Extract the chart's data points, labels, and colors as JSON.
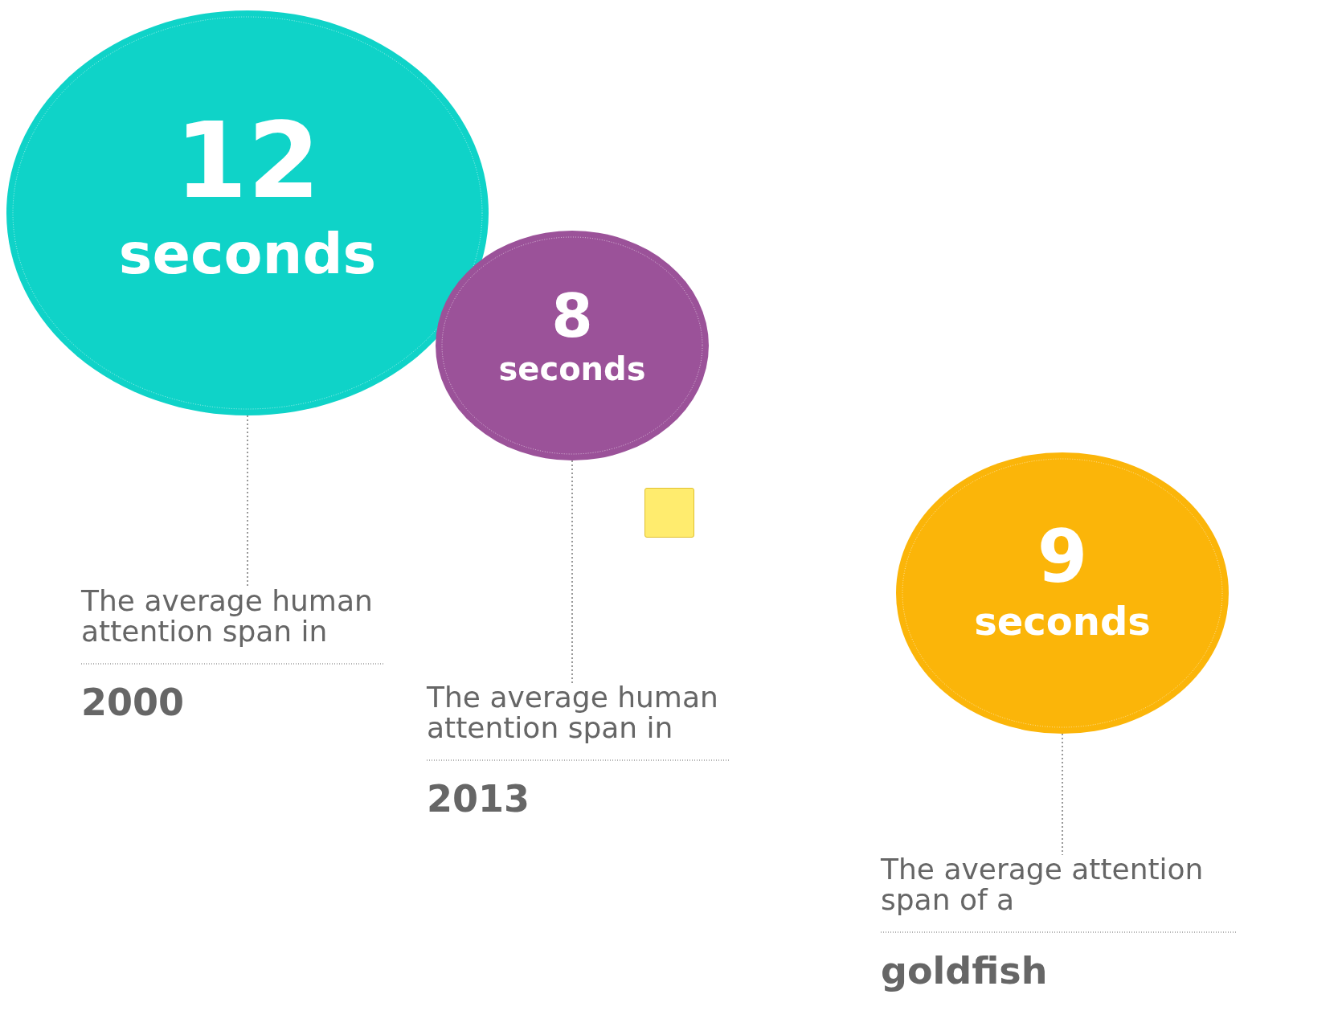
{
  "chart_data": {
    "type": "other",
    "categories": [
      "2000",
      "2013",
      "goldfish"
    ],
    "values": [
      12,
      8,
      9
    ],
    "ylabel": "seconds",
    "data_labels": true,
    "colors": [
      "#0fd3c8",
      "#9b5299",
      "#fbb509"
    ],
    "annotations": [
      "The average human attention span in",
      "The average human attention span in",
      "The average attention span of a"
    ]
  }
}
